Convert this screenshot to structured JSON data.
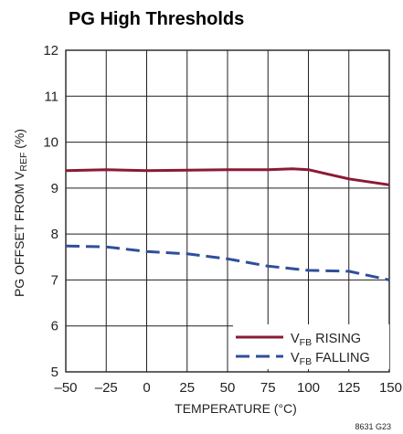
{
  "chart_data": {
    "type": "line",
    "title": "PG High Thresholds",
    "xlabel": "TEMPERATURE (°C)",
    "ylabel": {
      "prefix": "PG OFFSET FROM V",
      "sub": "REF",
      "suffix": " (%)"
    },
    "xlim": [
      -50,
      150
    ],
    "ylim": [
      5,
      12
    ],
    "xticks": [
      -50,
      -25,
      0,
      25,
      50,
      75,
      100,
      125,
      150
    ],
    "xtick_labels": [
      "–50",
      "–25",
      "0",
      "25",
      "50",
      "75",
      "100",
      "125",
      "150"
    ],
    "yticks": [
      5,
      6,
      7,
      8,
      9,
      10,
      11,
      12
    ],
    "ytick_labels": [
      "5",
      "6",
      "7",
      "8",
      "9",
      "10",
      "11",
      "12"
    ],
    "grid": true,
    "legend_position": "bottom-right",
    "series": [
      {
        "name": {
          "prefix": "V",
          "sub": "FB",
          "suffix": " RISING"
        },
        "color": "#8b1a35",
        "style": "solid",
        "x": [
          -50,
          -25,
          0,
          25,
          50,
          75,
          90,
          100,
          115,
          125,
          150
        ],
        "y": [
          9.38,
          9.4,
          9.38,
          9.39,
          9.4,
          9.4,
          9.42,
          9.4,
          9.28,
          9.2,
          9.07
        ]
      },
      {
        "name": {
          "prefix": "V",
          "sub": "FB",
          "suffix": " FALLING"
        },
        "color": "#2e4f9a",
        "style": "dashed",
        "x": [
          -50,
          -25,
          0,
          25,
          50,
          75,
          100,
          125,
          150
        ],
        "y": [
          7.74,
          7.72,
          7.62,
          7.57,
          7.46,
          7.3,
          7.21,
          7.19,
          7.0
        ]
      }
    ],
    "figure_code": "8631 G23"
  }
}
